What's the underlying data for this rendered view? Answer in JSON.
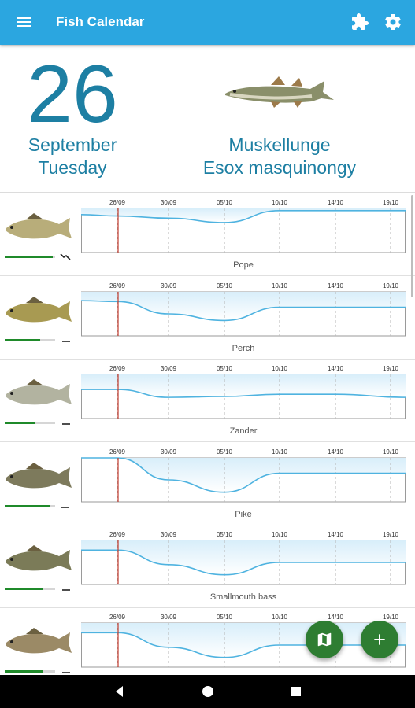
{
  "app": {
    "title": "Fish Calendar"
  },
  "today": {
    "day": "26",
    "month": "September",
    "weekday": "Tuesday",
    "fish_common": "Muskellunge",
    "fish_scientific": "Esox masquinongy"
  },
  "chart_dates": [
    "26/09",
    "30/09",
    "05/10",
    "10/10",
    "14/10",
    "19/10"
  ],
  "fish_rows": [
    {
      "name": "Pope",
      "level": 0.95,
      "trend": "zigzag",
      "curve": [
        0.14,
        0.17,
        0.22,
        0.32,
        0.05,
        0.05,
        0.05
      ]
    },
    {
      "name": "Perch",
      "level": 0.7,
      "trend": "flat",
      "curve": [
        0.2,
        0.22,
        0.5,
        0.65,
        0.35,
        0.35,
        0.35
      ]
    },
    {
      "name": "Zander",
      "level": 0.6,
      "trend": "flat",
      "curve": [
        0.34,
        0.34,
        0.52,
        0.5,
        0.45,
        0.45,
        0.52
      ]
    },
    {
      "name": "Pike",
      "level": 0.9,
      "trend": "flat-short",
      "curve": [
        0.0,
        0.0,
        0.5,
        0.78,
        0.35,
        0.35,
        0.35
      ]
    },
    {
      "name": "Smallmouth bass",
      "level": 0.75,
      "trend": "flat",
      "curve": [
        0.22,
        0.22,
        0.55,
        0.78,
        0.5,
        0.5,
        0.5
      ]
    },
    {
      "name": "",
      "level": 0.75,
      "trend": "flat",
      "curve": [
        0.22,
        0.22,
        0.55,
        0.78,
        0.5,
        0.5,
        0.5
      ]
    }
  ],
  "icons": {
    "menu": "menu-icon",
    "extension": "puzzle-icon",
    "settings": "gear-icon",
    "map": "map-icon",
    "add": "plus-icon",
    "back": "back-icon",
    "home": "home-icon",
    "recents": "recents-icon"
  },
  "colors": {
    "appbar": "#2ba6e0",
    "accent_text": "#1d7fa3",
    "fab": "#2e7d32",
    "curve": "#4fb3e0",
    "today_marker": "#c0392b"
  }
}
